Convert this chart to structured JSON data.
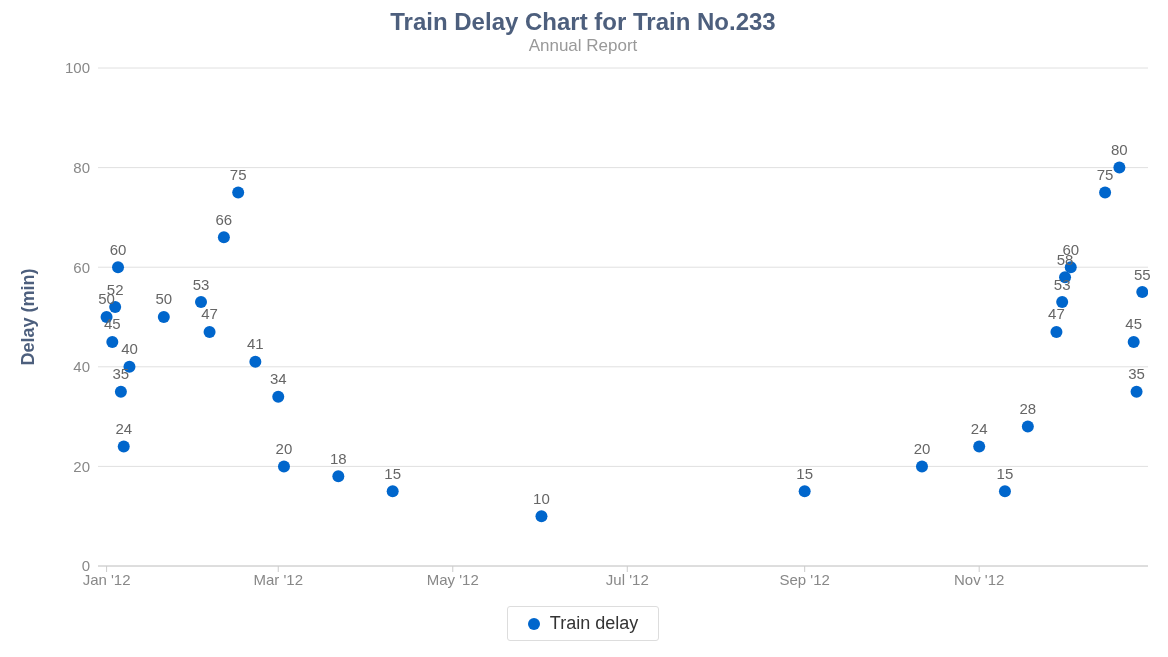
{
  "chart_data": {
    "type": "scatter",
    "title": "Train Delay Chart for Train No.233",
    "subtitle": "Annual Report",
    "ylabel": "Delay (min)",
    "x": [
      "2012-01-01",
      "2012-01-03",
      "2012-01-04",
      "2012-01-05",
      "2012-01-06",
      "2012-01-07",
      "2012-01-09",
      "2012-01-21",
      "2012-02-03",
      "2012-02-06",
      "2012-02-11",
      "2012-02-16",
      "2012-02-22",
      "2012-03-01",
      "2012-03-03",
      "2012-03-22",
      "2012-04-10",
      "2012-06-01",
      "2012-09-01",
      "2012-10-12",
      "2012-11-01",
      "2012-11-10",
      "2012-11-18",
      "2012-11-28",
      "2012-11-30",
      "2012-12-01",
      "2012-12-03",
      "2012-12-15",
      "2012-12-20",
      "2012-12-25",
      "2012-12-26",
      "2012-12-28"
    ],
    "series": [
      {
        "name": "Train delay",
        "color": "#0066cc",
        "values": [
          50,
          45,
          52,
          60,
          35,
          24,
          40,
          50,
          53,
          47,
          66,
          75,
          41,
          34,
          20,
          18,
          15,
          10,
          15,
          20,
          24,
          15,
          28,
          47,
          53,
          58,
          60,
          75,
          80,
          45,
          35,
          55
        ]
      }
    ],
    "xlim": [
      "2011-12-29",
      "2012-12-30"
    ],
    "xticks": [
      {
        "value": "2012-01-01",
        "label": "Jan '12"
      },
      {
        "value": "2012-03-01",
        "label": "Mar '12"
      },
      {
        "value": "2012-05-01",
        "label": "May '12"
      },
      {
        "value": "2012-07-01",
        "label": "Jul '12"
      },
      {
        "value": "2012-09-01",
        "label": "Sep '12"
      },
      {
        "value": "2012-11-01",
        "label": "Nov '12"
      }
    ],
    "ylim": [
      0,
      100
    ],
    "yticks": [
      0,
      20,
      40,
      60,
      80,
      100
    ],
    "grid": "y",
    "legend": "bottom",
    "marker": "circle",
    "data_labels": true
  }
}
